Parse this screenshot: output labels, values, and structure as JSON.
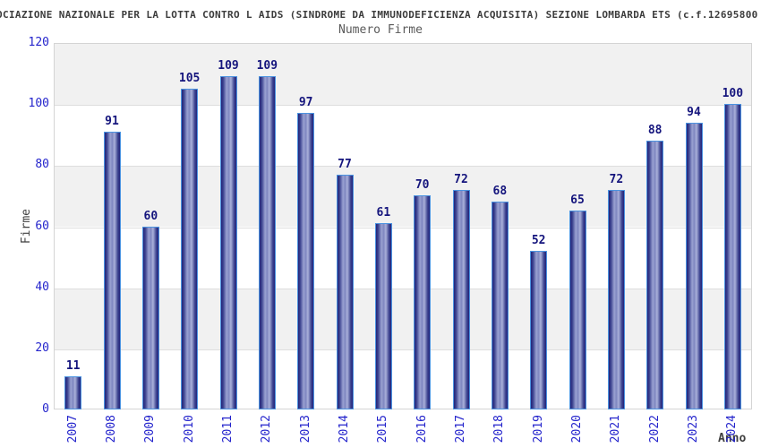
{
  "chart_data": {
    "type": "bar",
    "title": "OCIAZIONE NAZIONALE PER LA LOTTA CONTRO L AIDS (SINDROME DA IMMUNODEFICIENZA ACQUISITA) SEZIONE LOMBARDA ETS (c.f.12695800",
    "subtitle": "Numero Firme",
    "xlabel": "Anno",
    "ylabel": "Firme",
    "categories": [
      "2007",
      "2008",
      "2009",
      "2010",
      "2011",
      "2012",
      "2013",
      "2014",
      "2015",
      "2016",
      "2017",
      "2018",
      "2019",
      "2020",
      "2021",
      "2022",
      "2023",
      "2024"
    ],
    "values": [
      11,
      91,
      60,
      105,
      109,
      109,
      97,
      77,
      61,
      70,
      72,
      68,
      52,
      65,
      72,
      88,
      94,
      100
    ],
    "ylim": [
      0,
      120
    ],
    "yticks": [
      0,
      20,
      40,
      60,
      80,
      100,
      120
    ],
    "grid": true,
    "band_fill": "alternating-horizontal",
    "legend": null
  },
  "colors": {
    "bar_dark": "#23237a",
    "bar_light": "#aab1da",
    "bar_border": "#4b93e0",
    "tick_label": "#2424cc",
    "value_label": "#15157d",
    "band": "#f1f1f1",
    "grid": "#dedede",
    "title": "#3c3c3c",
    "subtitle": "#5a5a5a",
    "axis_title": "#404040"
  }
}
